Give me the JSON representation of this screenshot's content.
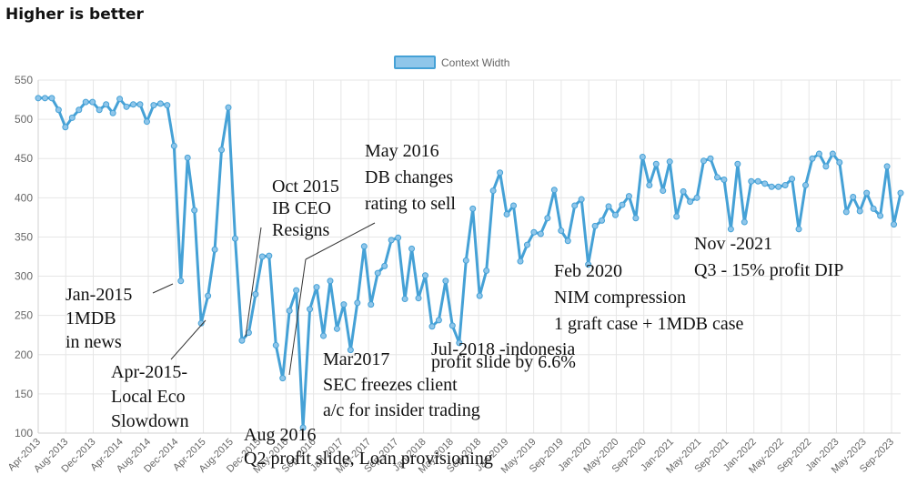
{
  "page": {
    "title": "Higher is better"
  },
  "colors": {
    "line": "#45a1d6",
    "point_fill": "#8fc6ea",
    "legend_fill": "#8fc6ea",
    "grid": "#e6e6e6",
    "annotation_line": "#333333"
  },
  "chart_data": {
    "type": "line",
    "title": "Higher is better",
    "xlabel": "",
    "ylabel": "",
    "ylim": [
      100,
      550
    ],
    "yticks": [
      100,
      150,
      200,
      250,
      300,
      350,
      400,
      450,
      500,
      550
    ],
    "grid": true,
    "legend_position": "top-center",
    "x_tick_labels": [
      "Apr-2013",
      "Aug-2013",
      "Dec-2013",
      "Apr-2014",
      "Aug-2014",
      "Dec-2014",
      "Apr-2015",
      "Aug-2015",
      "Dec-2015",
      "May-2016",
      "Sep-2016",
      "Jan-2017",
      "May-2017",
      "Sep-2017",
      "Jan-2018",
      "May-2018",
      "Sep-2018",
      "Jan-2019",
      "May-2019",
      "Sep-2019",
      "Jan-2020",
      "May-2020",
      "Sep-2020",
      "Jan-2021",
      "May-2021",
      "Sep-2021",
      "Jan-2022",
      "May-2022",
      "Sep-2022",
      "Jan-2023",
      "May-2023",
      "Sep-2023"
    ],
    "series": [
      {
        "name": "Context Width",
        "values": [
          527,
          527,
          527,
          512,
          490,
          502,
          512,
          522,
          522,
          512,
          519,
          508,
          526,
          516,
          519,
          519,
          497,
          518,
          520,
          518,
          466,
          294,
          451,
          384,
          240,
          275,
          334,
          461,
          515,
          348,
          218,
          228,
          277,
          325,
          326,
          212,
          170,
          256,
          282,
          107,
          258,
          286,
          224,
          294,
          233,
          264,
          206,
          266,
          338,
          264,
          304,
          313,
          346,
          349,
          271,
          335,
          272,
          301,
          236,
          244,
          294,
          237,
          215,
          320,
          386,
          275,
          307,
          409,
          432,
          379,
          390,
          319,
          340,
          356,
          354,
          374,
          410,
          358,
          345,
          390,
          398,
          315,
          364,
          371,
          389,
          378,
          391,
          402,
          374,
          452,
          416,
          443,
          409,
          446,
          376,
          408,
          395,
          400,
          447,
          450,
          426,
          423,
          360,
          443,
          369,
          421,
          421,
          418,
          414,
          414,
          416,
          424,
          360,
          416,
          450,
          456,
          440,
          456,
          445,
          382,
          401,
          383,
          406,
          386,
          377,
          440,
          366,
          406
        ]
      }
    ],
    "annotations": [
      {
        "lines": [
          "Jan-2015",
          "1MDB",
          "in news"
        ]
      },
      {
        "lines": [
          "Apr-2015-",
          "Local Eco",
          "Slowdown"
        ]
      },
      {
        "lines": [
          "Oct 2015",
          "IB CEO",
          "Resigns"
        ]
      },
      {
        "lines": [
          "May 2016",
          "DB changes",
          "rating to sell"
        ]
      },
      {
        "lines": [
          "Aug 2016",
          "Q2 profit slide, Loan provisioning"
        ]
      },
      {
        "lines": [
          "Mar2017",
          "SEC freezes client",
          "a/c for insider trading"
        ]
      },
      {
        "lines": [
          "Jul-2018 -indonesia",
          "profit slide by 6.6%"
        ]
      },
      {
        "lines": [
          "Feb 2020",
          "NIM compression",
          "1 graft case + 1MDB case"
        ]
      },
      {
        "lines": [
          "Nov -2021",
          "Q3 - 15% profit DIP"
        ]
      }
    ]
  }
}
